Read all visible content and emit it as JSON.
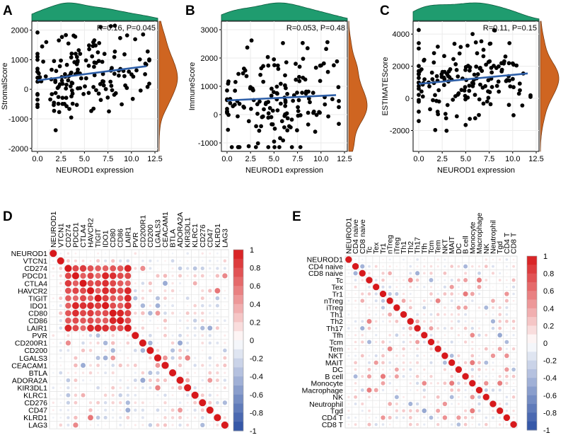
{
  "colors": {
    "point": "#000000",
    "regression": "#2e5fa8",
    "density_top": "#1f9c6f",
    "density_right": "#cf6521",
    "corr_pos": "#d7191c",
    "corr_neg": "#2b4fa3",
    "grid": "#cccccc"
  },
  "chart_data": [
    {
      "panel": "A",
      "type": "scatter",
      "xlabel": "NEUROD1 expression",
      "ylabel": "StromalScore",
      "annotation": "R=0.16, P=0.045",
      "xlim": [
        -0.6,
        12.8
      ],
      "ylim": [
        -2100,
        2300
      ],
      "xticks": [
        "0.0",
        "2.5",
        "5.0",
        "7.5",
        "10.0",
        "12.5"
      ],
      "yticks": [
        "-2000",
        "-1000",
        "0",
        "1000",
        "2000"
      ],
      "regression": {
        "x0": 0.0,
        "y0": 300,
        "x1": 11.6,
        "y1": 780
      },
      "seed": 11,
      "n_points": 170,
      "slope": 41,
      "intercept": 300,
      "noise": 700
    },
    {
      "panel": "B",
      "type": "scatter",
      "xlabel": "NEUROD1 expression",
      "ylabel": "ImmuneScore",
      "annotation": "R=0.053, P=0.48",
      "xlim": [
        -0.6,
        12.8
      ],
      "ylim": [
        -1300,
        3300
      ],
      "xticks": [
        "0.0",
        "2.5",
        "5.0",
        "7.5",
        "10.0",
        "12.5"
      ],
      "yticks": [
        "-1000",
        "0",
        "1000",
        "2000",
        "3000"
      ],
      "regression": {
        "x0": 0.0,
        "y0": 500,
        "x1": 11.6,
        "y1": 690
      },
      "seed": 23,
      "n_points": 165,
      "slope": 16,
      "intercept": 500,
      "noise": 800
    },
    {
      "panel": "C",
      "type": "scatter",
      "xlabel": "NEUROD1 expression",
      "ylabel": "ESTIMATEScore",
      "annotation": "R=0.11, P=0.15",
      "xlim": [
        -0.6,
        12.8
      ],
      "ylim": [
        -3300,
        4800
      ],
      "xticks": [
        "0.0",
        "2.5",
        "5.0",
        "7.5",
        "10.0",
        "12.5"
      ],
      "yticks": [
        "-2000",
        "0",
        "2000",
        "4000"
      ],
      "regression": {
        "x0": 0.0,
        "y0": 900,
        "x1": 11.6,
        "y1": 1550
      },
      "seed": 37,
      "n_points": 170,
      "slope": 56,
      "intercept": 900,
      "noise": 1400
    },
    {
      "panel": "D",
      "type": "heatmap",
      "labels": [
        "NEUROD1",
        "VTCN1",
        "CD274",
        "PDCD1",
        "CTLA4",
        "HAVCR2",
        "TIGIT",
        "IDO1",
        "CD80",
        "CD86",
        "LAIR1",
        "PVR",
        "CD200R1",
        "CD200",
        "LGALS3",
        "CEACAM1",
        "BTLA",
        "ADORA2A",
        "KIR3DL1",
        "KLRC1",
        "CD276",
        "CD47",
        "KLRD1",
        "LAG3"
      ],
      "strong_block": [
        "CD274",
        "PDCD1",
        "CTLA4",
        "HAVCR2",
        "TIGIT",
        "IDO1",
        "CD80",
        "CD86",
        "LAIR1"
      ],
      "colorbar_ticks": [
        "1",
        "0.8",
        "0.6",
        "0.4",
        "0.2",
        "0",
        "-0.2",
        "-0.4",
        "-0.6",
        "-0.8",
        "-1"
      ],
      "seed": 51
    },
    {
      "panel": "E",
      "type": "heatmap",
      "labels": [
        "NEUROD1",
        "CD4 naive",
        "CD8 naive",
        "Tc",
        "Tex",
        "Tr1",
        "nTreg",
        "iTreg",
        "Th1",
        "Th2",
        "Th17",
        "Tfh",
        "Tcm",
        "Tem",
        "NKT",
        "MAIT",
        "DC",
        "B cell",
        "Monocyte",
        "Macrophage",
        "NK",
        "Neutrophil",
        "Tgd",
        "CD4 T",
        "CD8 T"
      ],
      "strong_block": [],
      "colorbar_ticks": [
        "1",
        "0.8",
        "0.6",
        "0.4",
        "0.2",
        "0",
        "-0.2",
        "-0.4",
        "-0.6",
        "-0.8",
        "-1"
      ],
      "seed": 77
    }
  ]
}
